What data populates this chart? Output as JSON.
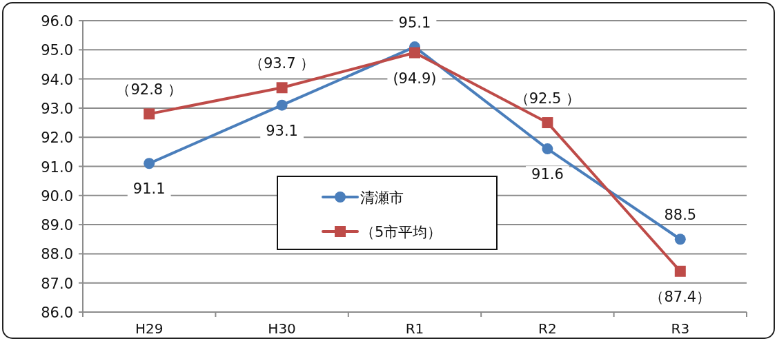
{
  "chart_data": {
    "type": "line",
    "categories": [
      "H29",
      "H30",
      "R1",
      "R2",
      "R3"
    ],
    "series": [
      {
        "name": "清瀬市",
        "color": "#4a7ebb",
        "marker": "circle",
        "values": [
          91.1,
          93.1,
          95.1,
          91.6,
          88.5
        ],
        "value_labels": [
          "91.1",
          "93.1",
          "95.1",
          "91.6",
          "88.5"
        ]
      },
      {
        "name": "（5市平均）",
        "color": "#be4b48",
        "marker": "square",
        "values": [
          92.8,
          93.7,
          94.9,
          92.5,
          87.4
        ],
        "value_labels": [
          "（92.8 ）",
          "（93.7 ）",
          "(94.9)",
          "（92.5 ）",
          "（87.4）"
        ]
      }
    ],
    "ylim": [
      86,
      96
    ],
    "yticks": [
      {
        "value": 86,
        "label": "86.0"
      },
      {
        "value": 87,
        "label": "87.0"
      },
      {
        "value": 88,
        "label": "88.0"
      },
      {
        "value": 89,
        "label": "89.0"
      },
      {
        "value": 90,
        "label": "90.0"
      },
      {
        "value": 91,
        "label": "91.0"
      },
      {
        "value": 92,
        "label": "92.0"
      },
      {
        "value": 93,
        "label": "93.0"
      },
      {
        "value": 94,
        "label": "94.0"
      },
      {
        "value": 95,
        "label": "95.0"
      },
      {
        "value": 96,
        "label": "96.0"
      }
    ],
    "grid": "y",
    "legend": "center"
  }
}
